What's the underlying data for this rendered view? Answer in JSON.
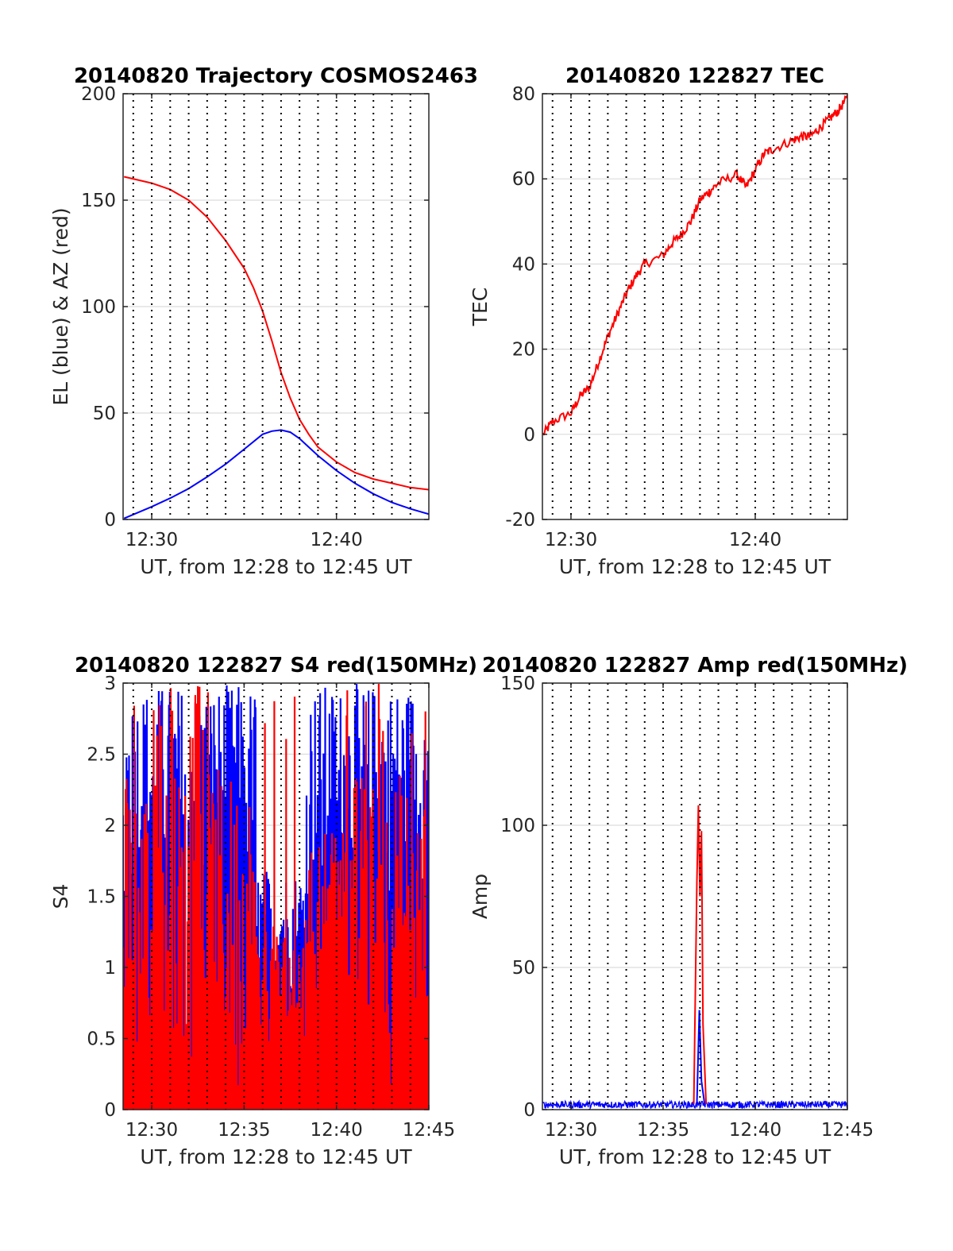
{
  "colors": {
    "red": "#ff0000",
    "blue": "#0000ff",
    "grid": "#dcdcdc",
    "axis": "#262626",
    "vline": "#000000"
  },
  "chart_data": [
    {
      "type": "line",
      "title": "20140820 Trajectory COSMOS2463",
      "xlabel": "UT, from 12:28 to 12:45 UT",
      "ylabel": "EL (blue) & AZ (red)",
      "xlim": [
        "12:28:27",
        "12:45:00"
      ],
      "ylim": [
        0,
        200
      ],
      "yticks": [
        0,
        50,
        100,
        150,
        200
      ],
      "xticks": [
        "12:30",
        "12:40"
      ],
      "grid": "horizontal",
      "vertical_dotted_lines": "every minute",
      "series": [
        {
          "color": "red",
          "x": [
            "12:28:30",
            "12:30:00",
            "12:31:00",
            "12:32:00",
            "12:33:00",
            "12:34:00",
            "12:35:00",
            "12:35:30",
            "12:36:00",
            "12:36:30",
            "12:37:00",
            "12:37:30",
            "12:38:00",
            "12:38:30",
            "12:39:00",
            "12:40:00",
            "12:41:00",
            "12:42:00",
            "12:43:00",
            "12:44:00",
            "12:45:00"
          ],
          "values": [
            161,
            158,
            155,
            150,
            142,
            131,
            118,
            109,
            98,
            84,
            69,
            57,
            47,
            40,
            34,
            27,
            22,
            19,
            17,
            15,
            14
          ]
        },
        {
          "color": "blue",
          "x": [
            "12:28:30",
            "12:30:00",
            "12:31:00",
            "12:32:00",
            "12:33:00",
            "12:34:00",
            "12:35:00",
            "12:36:00",
            "12:36:30",
            "12:37:00",
            "12:37:30",
            "12:38:00",
            "12:39:00",
            "12:40:00",
            "12:41:00",
            "12:42:00",
            "12:43:00",
            "12:44:00",
            "12:45:00"
          ],
          "values": [
            0.5,
            6,
            10,
            14.5,
            20,
            26,
            33,
            40,
            41.5,
            42,
            41,
            38,
            30,
            23,
            17,
            12,
            8,
            5,
            2.5
          ]
        }
      ]
    },
    {
      "type": "line",
      "title": "20140820 122827 TEC",
      "xlabel": "UT, from 12:28 to 12:45 UT",
      "ylabel": "TEC",
      "xlim": [
        "12:28:27",
        "12:45:00"
      ],
      "ylim": [
        -20,
        80
      ],
      "yticks": [
        -20,
        0,
        20,
        40,
        60,
        80
      ],
      "xticks": [
        "12:30",
        "12:40"
      ],
      "grid": "horizontal",
      "vertical_dotted_lines": "every minute",
      "series": [
        {
          "color": "red",
          "x": [
            "12:28:30",
            "12:29:00",
            "12:30:00",
            "12:30:30",
            "12:31:00",
            "12:31:30",
            "12:32:00",
            "12:32:30",
            "12:33:00",
            "12:33:30",
            "12:34:00",
            "12:35:00",
            "12:35:30",
            "12:36:00",
            "12:36:30",
            "12:37:00",
            "12:37:30",
            "12:38:00",
            "12:39:00",
            "12:39:30",
            "12:40:00",
            "12:40:30",
            "12:41:00",
            "12:42:00",
            "12:42:30",
            "12:43:00",
            "12:43:30",
            "12:44:00",
            "12:44:30",
            "12:45:00"
          ],
          "values": [
            0,
            3,
            5,
            9,
            11,
            17,
            23,
            28,
            33,
            37,
            40,
            42,
            45,
            47,
            50,
            55,
            57,
            59,
            61,
            58,
            62,
            66,
            67,
            69,
            70,
            70,
            72,
            74,
            76,
            79
          ]
        }
      ]
    },
    {
      "type": "line",
      "title": "20140820 122827 S4 red(150MHz)",
      "xlabel": "UT, from 12:28 to 12:45 UT",
      "ylabel": "S4",
      "xlim": [
        "12:28:27",
        "12:45:00"
      ],
      "ylim": [
        0,
        3
      ],
      "yticks": [
        0,
        0.5,
        1,
        1.5,
        2,
        2.5,
        3
      ],
      "ytick_labels": [
        "0",
        "0.5",
        "1",
        "1.5",
        "2",
        "2.5",
        "3"
      ],
      "xticks": [
        "12:30",
        "12:35",
        "12:40",
        "12:45"
      ],
      "grid": "horizontal",
      "vertical_dotted_lines": "every minute",
      "series": [
        {
          "color": "blue",
          "description_values": "noisy, mostly between 1.5 and 3, drops to about 0.8 near 12:37"
        },
        {
          "color": "red",
          "description_values": "noisy, spikes between 0 and 3, drops to about 0.5 near 12:37"
        }
      ]
    },
    {
      "type": "line",
      "title": "20140820 122827 Amp red(150MHz)",
      "xlabel": "UT, from 12:28 to 12:45 UT",
      "ylabel": "Amp",
      "xlim": [
        "12:28:27",
        "12:45:00"
      ],
      "ylim": [
        0,
        150
      ],
      "yticks": [
        0,
        50,
        100,
        150
      ],
      "xticks": [
        "12:30",
        "12:35",
        "12:40",
        "12:45"
      ],
      "grid": "horizontal",
      "vertical_dotted_lines": "every minute",
      "series": [
        {
          "color": "red",
          "x": [
            "12:36:40",
            "12:36:50",
            "12:36:55",
            "12:37:00",
            "12:37:05",
            "12:37:10",
            "12:37:20"
          ],
          "values": [
            2,
            80,
            107,
            75,
            98,
            30,
            2
          ]
        },
        {
          "color": "blue",
          "x": [
            "12:36:50",
            "12:36:58",
            "12:37:05",
            "12:37:15"
          ],
          "values": [
            2,
            35,
            10,
            2
          ]
        }
      ]
    }
  ]
}
